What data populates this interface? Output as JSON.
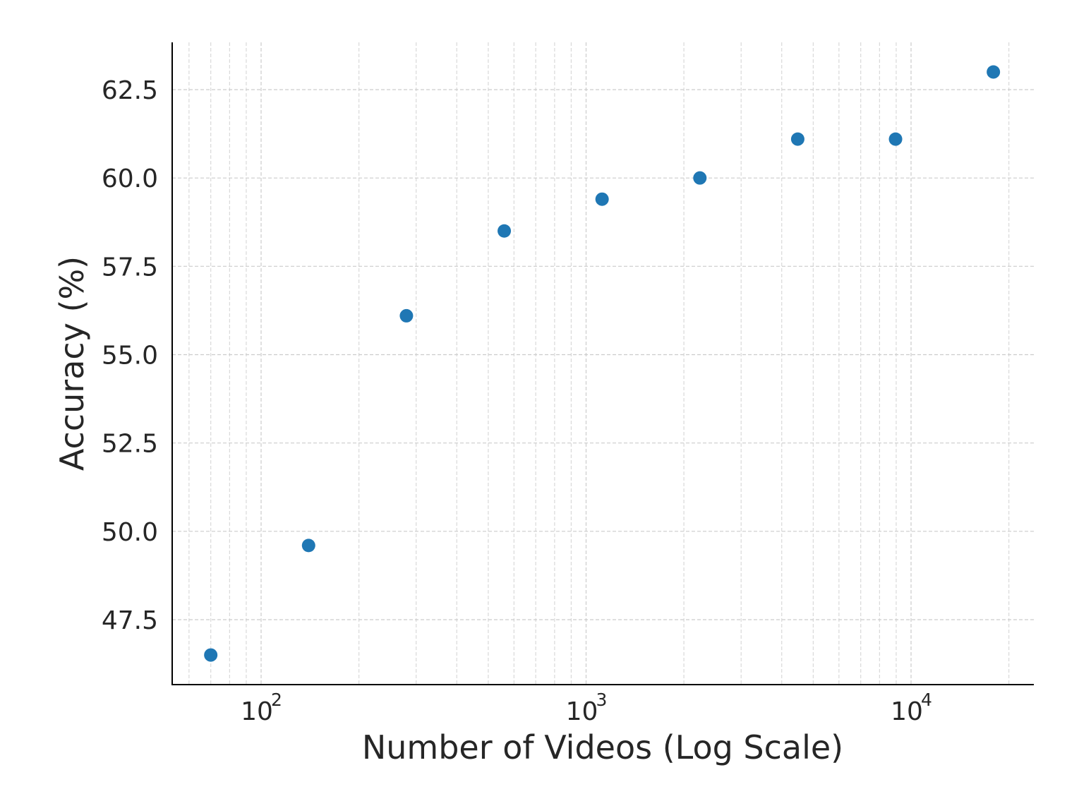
{
  "chart_data": {
    "type": "scatter",
    "title": "",
    "xlabel": "Number of Videos (Log Scale)",
    "ylabel": "Accuracy (%)",
    "x_scale": "log",
    "y_scale": "linear",
    "xlim": [
      55,
      23000
    ],
    "ylim": [
      45.8,
      63.8
    ],
    "grid": true,
    "color": "#1f77b4",
    "x_ticks": [
      {
        "base": "10",
        "exp": "2",
        "value": 100
      },
      {
        "base": "10",
        "exp": "3",
        "value": 1000
      },
      {
        "base": "10",
        "exp": "4",
        "value": 10000
      }
    ],
    "y_ticks": [
      {
        "label": "47.5",
        "value": 47.5
      },
      {
        "label": "50.0",
        "value": 50.0
      },
      {
        "label": "52.5",
        "value": 52.5
      },
      {
        "label": "55.0",
        "value": 55.0
      },
      {
        "label": "57.5",
        "value": 57.5
      },
      {
        "label": "60.0",
        "value": 60.0
      },
      {
        "label": "62.5",
        "value": 62.5
      }
    ],
    "points": [
      {
        "x": 70,
        "y": 46.5
      },
      {
        "x": 140,
        "y": 49.6
      },
      {
        "x": 280,
        "y": 56.1
      },
      {
        "x": 560,
        "y": 58.5
      },
      {
        "x": 1120,
        "y": 59.4
      },
      {
        "x": 2240,
        "y": 60.0
      },
      {
        "x": 4480,
        "y": 61.1
      },
      {
        "x": 8960,
        "y": 61.1
      },
      {
        "x": 17920,
        "y": 63.0
      }
    ]
  }
}
